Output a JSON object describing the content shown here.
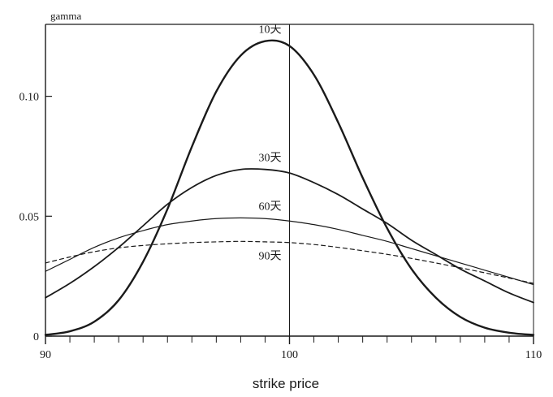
{
  "chart_data": {
    "type": "line",
    "title": "",
    "ylabel": "gamma",
    "xlabel": "strike price",
    "xlim": [
      90,
      110
    ],
    "ylim": [
      0,
      0.13
    ],
    "x_ticks": [
      {
        "value": 90,
        "label": "90"
      },
      {
        "value": 100,
        "label": "100"
      },
      {
        "value": 110,
        "label": "110"
      }
    ],
    "y_ticks": [
      {
        "value": 0,
        "label": "0"
      },
      {
        "value": 0.05,
        "label": "0.05"
      },
      {
        "value": 0.1,
        "label": "0.10"
      }
    ],
    "reference_line_x": 100,
    "grid": false,
    "x": [
      90,
      91,
      92,
      93,
      94,
      95,
      96,
      97,
      98,
      99,
      100,
      101,
      102,
      103,
      104,
      105,
      106,
      107,
      108,
      109,
      110
    ],
    "series": [
      {
        "name": "10天",
        "style": "solid",
        "weight": "heavy",
        "values": [
          0.0005,
          0.002,
          0.006,
          0.015,
          0.031,
          0.053,
          0.079,
          0.102,
          0.117,
          0.123,
          0.121,
          0.109,
          0.089,
          0.066,
          0.045,
          0.028,
          0.016,
          0.008,
          0.0035,
          0.0014,
          0.0005
        ]
      },
      {
        "name": "30天",
        "style": "solid",
        "weight": "medium",
        "values": [
          0.016,
          0.022,
          0.029,
          0.037,
          0.046,
          0.055,
          0.062,
          0.067,
          0.0695,
          0.0695,
          0.068,
          0.064,
          0.059,
          0.053,
          0.047,
          0.04,
          0.034,
          0.028,
          0.023,
          0.018,
          0.014
        ]
      },
      {
        "name": "60天",
        "style": "solid",
        "weight": "light",
        "values": [
          0.027,
          0.032,
          0.037,
          0.041,
          0.044,
          0.0465,
          0.048,
          0.049,
          0.0493,
          0.049,
          0.048,
          0.0465,
          0.0445,
          0.042,
          0.0395,
          0.0365,
          0.0335,
          0.0305,
          0.0275,
          0.0245,
          0.0215
        ]
      },
      {
        "name": "90天",
        "style": "dashed",
        "weight": "light",
        "values": [
          0.0305,
          0.033,
          0.0352,
          0.0368,
          0.0378,
          0.0385,
          0.039,
          0.0393,
          0.0395,
          0.0393,
          0.039,
          0.0382,
          0.037,
          0.0356,
          0.0341,
          0.0324,
          0.0305,
          0.0285,
          0.0264,
          0.0242,
          0.022
        ]
      }
    ],
    "annotations": [
      {
        "text": "10天",
        "series": "10天"
      },
      {
        "text": "30天",
        "series": "30天"
      },
      {
        "text": "60天",
        "series": "60天"
      },
      {
        "text": "90天",
        "series": "90天"
      }
    ],
    "colors": {
      "ink": "#1a1a1a",
      "background": "#ffffff"
    }
  }
}
